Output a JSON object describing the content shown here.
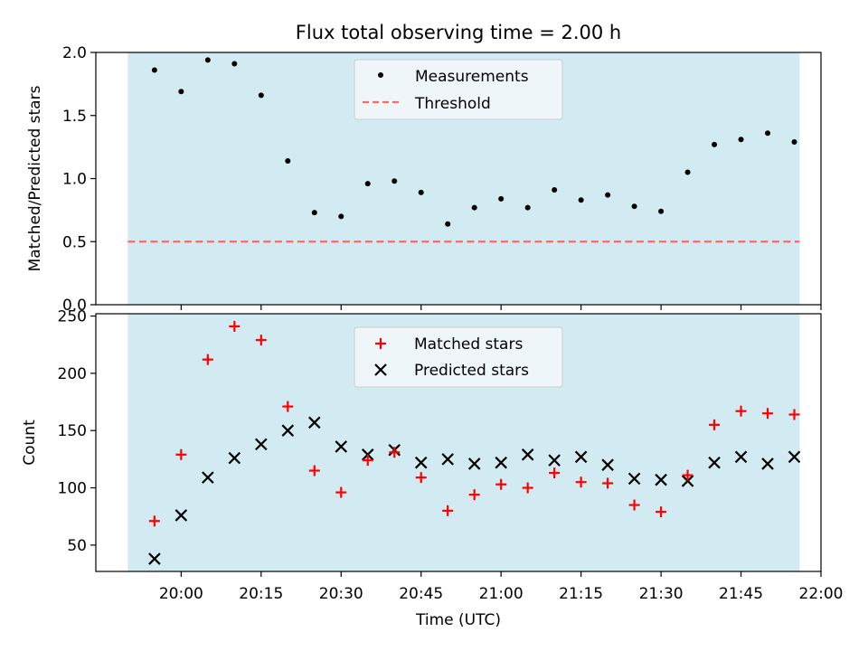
{
  "figure": {
    "title": "Flux total observing time = 2.00 h",
    "xlabel": "Time (UTC)",
    "x_ticks": [
      "20:00",
      "20:15",
      "20:30",
      "20:45",
      "21:00",
      "21:15",
      "21:30",
      "21:45",
      "22:00"
    ],
    "x_range_minutes": [
      1184,
      1320
    ],
    "shaded_region_minutes": [
      1190,
      1316
    ],
    "colors": {
      "shade": "#add8e6",
      "measurements": "#000000",
      "threshold": "#ff6666",
      "matched": "#ff0000",
      "predicted": "#000000",
      "legend_bg": "#f5f8fb"
    }
  },
  "chart_data": [
    {
      "type": "scatter",
      "panel": "top",
      "ylabel": "Matched/Predicted stars",
      "ylim": [
        0,
        2.0
      ],
      "y_ticks": [
        "0.0",
        "0.5",
        "1.0",
        "1.5",
        "2.0"
      ],
      "x_time": [
        "19:55",
        "20:00",
        "20:05",
        "20:10",
        "20:15",
        "20:20",
        "20:25",
        "20:30",
        "20:35",
        "20:40",
        "20:45",
        "20:50",
        "20:55",
        "21:00",
        "21:05",
        "21:10",
        "21:15",
        "21:20",
        "21:25",
        "21:30",
        "21:35",
        "21:40",
        "21:45",
        "21:50",
        "21:55"
      ],
      "series": [
        {
          "name": "Measurements",
          "values": [
            1.86,
            1.69,
            1.94,
            1.91,
            1.66,
            1.14,
            0.73,
            0.7,
            0.96,
            0.98,
            0.89,
            0.64,
            0.77,
            0.84,
            0.77,
            0.91,
            0.83,
            0.87,
            0.78,
            0.74,
            1.05,
            1.27,
            1.31,
            1.36,
            1.29
          ]
        },
        {
          "name": "Threshold",
          "values": [
            0.5
          ]
        }
      ],
      "legend": [
        "Measurements",
        "Threshold"
      ],
      "legend_position": "top-center"
    },
    {
      "type": "scatter",
      "panel": "bottom",
      "ylabel": "Count",
      "ylim": [
        27,
        252
      ],
      "y_ticks": [
        "50",
        "100",
        "150",
        "200",
        "250"
      ],
      "x_time": [
        "19:55",
        "20:00",
        "20:05",
        "20:10",
        "20:15",
        "20:20",
        "20:25",
        "20:30",
        "20:35",
        "20:40",
        "20:45",
        "20:50",
        "20:55",
        "21:00",
        "21:05",
        "21:10",
        "21:15",
        "21:20",
        "21:25",
        "21:30",
        "21:35",
        "21:40",
        "21:45",
        "21:50",
        "21:55"
      ],
      "series": [
        {
          "name": "Matched stars",
          "values": [
            71,
            129,
            212,
            241,
            229,
            171,
            115,
            96,
            124,
            131,
            109,
            80,
            94,
            103,
            100,
            113,
            105,
            104,
            85,
            79,
            111,
            155,
            167,
            165,
            164
          ]
        },
        {
          "name": "Predicted stars",
          "values": [
            38,
            76,
            109,
            126,
            138,
            150,
            157,
            136,
            129,
            133,
            122,
            125,
            121,
            122,
            129,
            124,
            127,
            120,
            108,
            107,
            106,
            122,
            127,
            121,
            127
          ]
        }
      ],
      "legend": [
        "Matched stars",
        "Predicted stars"
      ],
      "legend_position": "top-center"
    }
  ]
}
